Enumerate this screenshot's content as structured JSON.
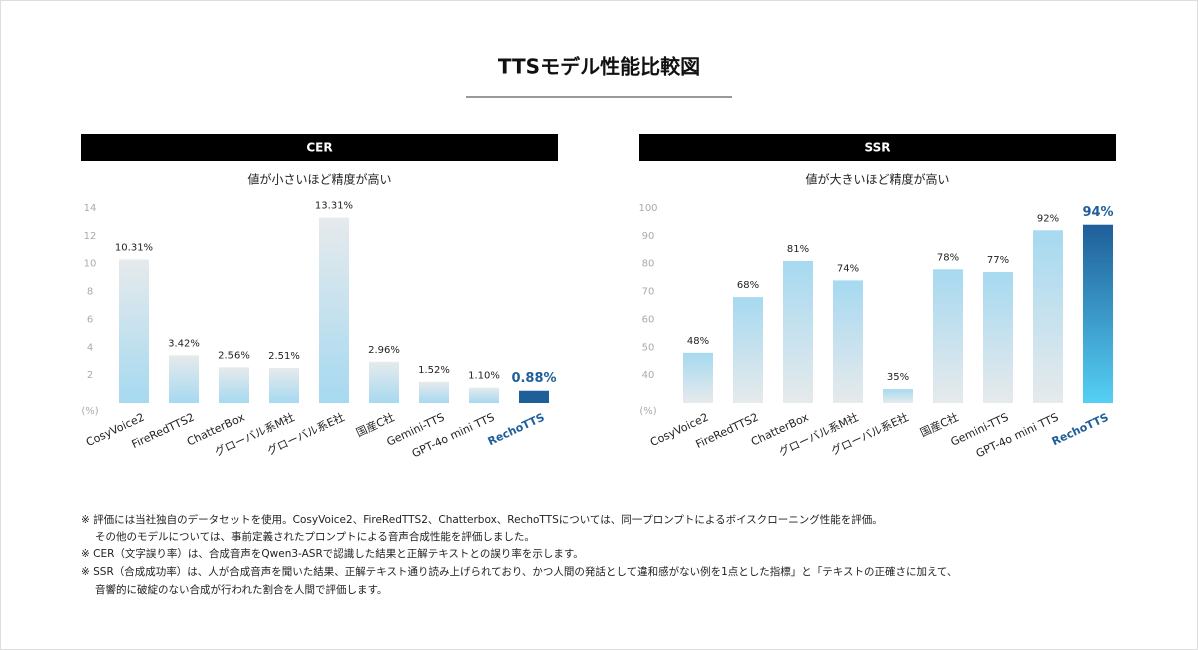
{
  "title": "TTSモデル性能比較図",
  "chart_data": [
    {
      "type": "bar",
      "title": "CER",
      "subtitle": "値が小さいほど精度が高い",
      "y_unit_label": "(%)",
      "categories": [
        "CosyVoice2",
        "FireRedTTS2",
        "ChatterBox",
        "グローバル系M社",
        "グローバル系E社",
        "国産C社",
        "Gemini-TTS",
        "GPT-4o mini TTS",
        "RechoTTS"
      ],
      "values": [
        10.31,
        3.42,
        2.56,
        2.51,
        13.31,
        2.96,
        1.52,
        1.1,
        0.88
      ],
      "value_labels": [
        "10.31%",
        "3.42%",
        "2.56%",
        "2.51%",
        "13.31%",
        "2.96%",
        "1.52%",
        "1.10%",
        "0.88%"
      ],
      "colors": [
        "#a6d9f0",
        "#a6d9f0",
        "#a6d9f0",
        "#a6d9f0",
        "#a6d9f0",
        "#a6d9f0",
        "#a6d9f0",
        "#a6d9f0",
        "#1f5f99"
      ],
      "highlight_color": "#1f5f99",
      "ylim": [
        0,
        14
      ],
      "yticks": [
        2,
        4,
        6,
        8,
        10,
        12,
        14
      ],
      "grid": false
    },
    {
      "type": "bar",
      "title": "SSR",
      "subtitle": "値が大きいほど精度が高い",
      "y_unit_label": "(%)",
      "categories": [
        "CosyVoice2",
        "FireRedTTS2",
        "ChatterBox",
        "グローバル系M社",
        "グローバル系E社",
        "国産C社",
        "Gemini-TTS",
        "GPT-4o mini TTS",
        "RechoTTS"
      ],
      "values": [
        48,
        68,
        81,
        74,
        35,
        78,
        77,
        92,
        94
      ],
      "value_labels": [
        "48%",
        "68%",
        "81%",
        "74%",
        "35%",
        "78%",
        "77%",
        "92%",
        "94%"
      ],
      "colors": [
        "#a6d9f0",
        "#a6d9f0",
        "#a6d9f0",
        "#a6d9f0",
        "#a6d9f0",
        "#a6d9f0",
        "#a6d9f0",
        "#a6d9f0",
        "#1f5f99"
      ],
      "highlight_color": "#1f5f99",
      "ylim": [
        30,
        100
      ],
      "yticks": [
        40,
        50,
        60,
        70,
        80,
        90,
        100
      ],
      "grid": false
    }
  ],
  "notes": [
    "※ 評価には当社独自のデータセットを使用。CosyVoice2、FireRedTTS2、Chatterbox、RechoTTSについては、同一プロンプトによるボイスクローニング性能を評価。",
    "その他のモデルについては、事前定義されたプロンプトによる音声合成性能を評価しました。",
    "※ CER（文字誤り率）は、合成音声をQwen3-ASRで認識した結果と正解テキストとの誤り率を示します。",
    "※ SSR（合成成功率）は、人が合成音声を聞いた結果、正解テキスト通り読み上げられており、かつ人間の発話として違和感がない例を1点とした指標」と「テキストの正確さに加えて、",
    "音響的に破綻のない合成が行われた割合を人間で評価します。"
  ]
}
